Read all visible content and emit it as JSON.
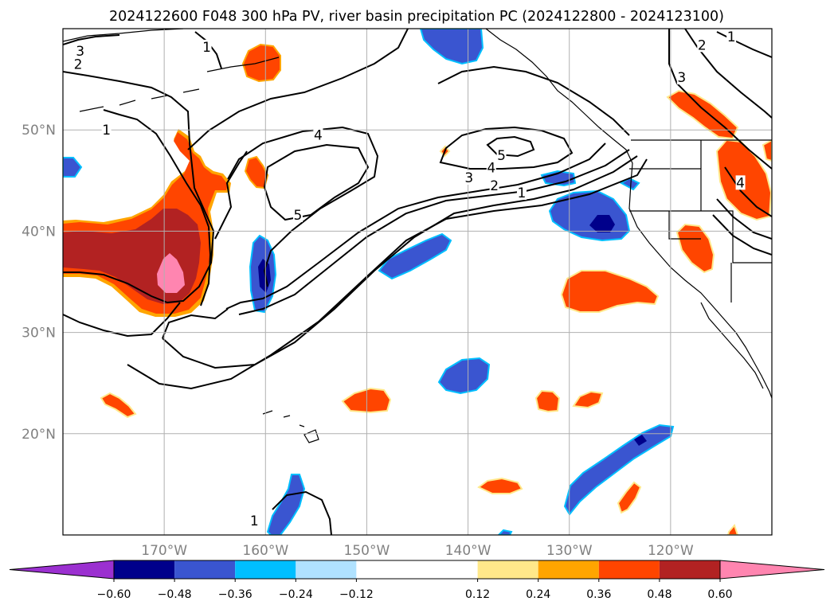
{
  "chart_data": {
    "type": "contour-map",
    "title": "2024122600 F048 300 hPa PV, river basin precipitation PC (2024122800 - 2024123100)",
    "lon_range": [
      -180,
      -110
    ],
    "lat_range": [
      10,
      60
    ],
    "lon_ticks": [
      {
        "value": -170,
        "label": "170°W"
      },
      {
        "value": -160,
        "label": "160°W"
      },
      {
        "value": -150,
        "label": "150°W"
      },
      {
        "value": -140,
        "label": "140°W"
      },
      {
        "value": -130,
        "label": "130°W"
      },
      {
        "value": -120,
        "label": "120°W"
      }
    ],
    "lat_ticks": [
      {
        "value": 50,
        "label": "50°N"
      },
      {
        "value": 40,
        "label": "40°N"
      },
      {
        "value": 30,
        "label": "30°N"
      },
      {
        "value": 20,
        "label": "20°N"
      }
    ],
    "grid": true,
    "colorbar": {
      "position": "bottom",
      "extend": "both",
      "boundaries": [
        -0.6,
        -0.48,
        -0.36,
        -0.24,
        -0.12,
        0.12,
        0.24,
        0.36,
        0.48,
        0.6
      ],
      "tick_labels": [
        "-0.60",
        "-0.48",
        "-0.36",
        "-0.24",
        "-0.12",
        "0.12",
        "0.24",
        "0.36",
        "0.48",
        "0.60"
      ],
      "colors": [
        "#9b30d0",
        "#00008b",
        "#3a55d0",
        "#00bfff",
        "#b0e2ff",
        "#ffffff",
        "#ffe88a",
        "#ffa500",
        "#ff4500",
        "#b22222",
        "#ff85b0"
      ]
    },
    "pv_contour_levels": [
      1,
      2,
      3,
      4,
      5
    ],
    "pv_contour_labels": [
      {
        "text": "3",
        "lon": -178.3,
        "lat": 57.8
      },
      {
        "text": "2",
        "lon": -178.5,
        "lat": 56.5
      },
      {
        "text": "1",
        "lon": -175.7,
        "lat": 50.0
      },
      {
        "text": "1",
        "lon": -165.8,
        "lat": 58.2
      },
      {
        "text": "4",
        "lon": -154.8,
        "lat": 49.5
      },
      {
        "text": "5",
        "lon": -156.8,
        "lat": 41.6
      },
      {
        "text": "5",
        "lon": -136.7,
        "lat": 47.5
      },
      {
        "text": "4",
        "lon": -137.7,
        "lat": 46.3
      },
      {
        "text": "3",
        "lon": -139.9,
        "lat": 45.3
      },
      {
        "text": "2",
        "lon": -137.4,
        "lat": 44.5
      },
      {
        "text": "1",
        "lon": -134.7,
        "lat": 43.8
      },
      {
        "text": "1",
        "lon": -114.0,
        "lat": 59.2
      },
      {
        "text": "2",
        "lon": -116.9,
        "lat": 58.4
      },
      {
        "text": "3",
        "lon": -118.9,
        "lat": 55.2
      },
      {
        "text": "4",
        "lon": -113.1,
        "lat": 44.8
      },
      {
        "text": "1",
        "lon": -161.1,
        "lat": 11.4
      }
    ]
  }
}
